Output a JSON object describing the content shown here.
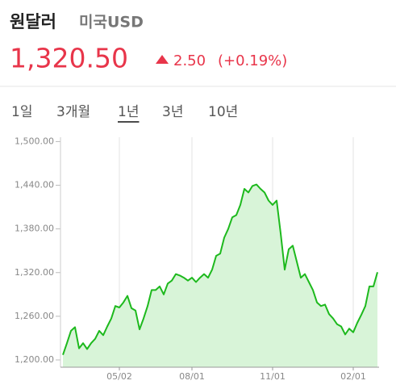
{
  "header": {
    "title": "원달러",
    "subtitle": "미국USD",
    "price": "1,320.50",
    "change": "2.50",
    "change_pct": "(+0.19%)"
  },
  "tabs": [
    "1일",
    "3개월",
    "1년",
    "3년",
    "10년"
  ],
  "selected_tab": 2,
  "chart_data": {
    "type": "area",
    "categories": [
      null,
      null,
      null,
      null,
      null,
      null,
      null,
      null,
      null,
      null,
      null,
      null,
      null,
      null,
      "05/02",
      null,
      null,
      null,
      null,
      null,
      null,
      null,
      null,
      null,
      null,
      null,
      null,
      null,
      null,
      null,
      null,
      null,
      "08/01",
      null,
      null,
      null,
      null,
      null,
      null,
      null,
      null,
      null,
      null,
      null,
      null,
      null,
      null,
      null,
      null,
      null,
      null,
      null,
      "11/01",
      null,
      null,
      null,
      null,
      null,
      null,
      null,
      null,
      null,
      null,
      null,
      null,
      null,
      null,
      null,
      null,
      null,
      null,
      null,
      "02/01",
      null,
      null,
      null,
      null,
      null,
      null
    ],
    "values": [
      1207,
      1223,
      1240,
      1245,
      1216,
      1223,
      1215,
      1223,
      1229,
      1240,
      1234,
      1246,
      1257,
      1274,
      1272,
      1279,
      1288,
      1271,
      1268,
      1242,
      1257,
      1274,
      1296,
      1296,
      1301,
      1290,
      1305,
      1309,
      1318,
      1316,
      1313,
      1309,
      1313,
      1307,
      1313,
      1318,
      1313,
      1324,
      1343,
      1346,
      1368,
      1380,
      1396,
      1399,
      1413,
      1435,
      1430,
      1439,
      1441,
      1435,
      1430,
      1419,
      1413,
      1419,
      1374,
      1324,
      1352,
      1357,
      1335,
      1313,
      1318,
      1307,
      1296,
      1279,
      1274,
      1276,
      1263,
      1257,
      1249,
      1246,
      1235,
      1243,
      1238,
      1251,
      1262,
      1274,
      1301,
      1301,
      1320.5
    ],
    "color": "#1db91d",
    "area_color": "#d8f4d8",
    "ylim": [
      1190,
      1506
    ],
    "yticks": [
      {
        "value": 1200,
        "label": "1,200.00"
      },
      {
        "value": 1260,
        "label": "1,260.00"
      },
      {
        "value": 1320,
        "label": "1,320.00"
      },
      {
        "value": 1380,
        "label": "1,380.00"
      },
      {
        "value": 1440,
        "label": "1,440.00"
      },
      {
        "value": 1500,
        "label": "1,500.00"
      }
    ],
    "grid": true
  }
}
